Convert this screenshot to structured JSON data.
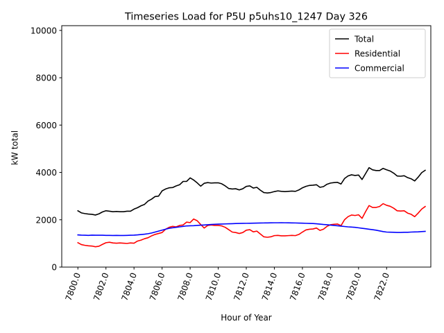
{
  "chart_data": {
    "type": "line",
    "title": "Timeseries Load for P5U p5uhs10_1247  Day 326",
    "xlabel": "Hour of Year",
    "ylabel": "kW total",
    "xlim": [
      7798.85,
      7825.15
    ],
    "ylim": [
      0,
      10200
    ],
    "xticks": [
      7800,
      7802,
      7804,
      7806,
      7808,
      7810,
      7812,
      7814,
      7816,
      7818,
      7820,
      7822
    ],
    "xtick_labels": [
      "7800.0",
      "7802.0",
      "7804.0",
      "7806.0",
      "7808.0",
      "7810.0",
      "7812.0",
      "7814.0",
      "7816.0",
      "7818.0",
      "7820.0",
      "7822.0"
    ],
    "yticks": [
      0,
      2000,
      4000,
      6000,
      8000,
      10000
    ],
    "ytick_labels": [
      "0",
      "2000",
      "4000",
      "6000",
      "8000",
      "10000"
    ],
    "legend_position": "top-right",
    "x_start": 7800,
    "x_step": 0.25,
    "series": [
      {
        "name": "Total",
        "color": "#000000",
        "values": [
          2380,
          2290,
          2260,
          2240,
          2230,
          2200,
          2250,
          2330,
          2380,
          2360,
          2340,
          2350,
          2340,
          2340,
          2360,
          2360,
          2450,
          2510,
          2590,
          2650,
          2790,
          2870,
          2980,
          3000,
          3220,
          3300,
          3350,
          3360,
          3430,
          3480,
          3620,
          3620,
          3770,
          3680,
          3560,
          3420,
          3540,
          3570,
          3550,
          3560,
          3560,
          3520,
          3430,
          3320,
          3300,
          3310,
          3260,
          3310,
          3410,
          3430,
          3340,
          3370,
          3250,
          3150,
          3130,
          3150,
          3190,
          3220,
          3200,
          3190,
          3200,
          3210,
          3200,
          3260,
          3350,
          3410,
          3450,
          3460,
          3480,
          3370,
          3400,
          3500,
          3550,
          3570,
          3580,
          3510,
          3740,
          3850,
          3900,
          3870,
          3890,
          3700,
          3950,
          4200,
          4110,
          4080,
          4080,
          4170,
          4110,
          4060,
          3970,
          3850,
          3840,
          3860,
          3780,
          3730,
          3640,
          3800,
          3990,
          4090
        ]
      },
      {
        "name": "Residential",
        "color": "#ff0000",
        "values": [
          1030,
          950,
          920,
          900,
          890,
          860,
          880,
          960,
          1030,
          1050,
          1020,
          1010,
          1020,
          1010,
          1000,
          1020,
          1010,
          1100,
          1140,
          1200,
          1240,
          1320,
          1380,
          1420,
          1460,
          1600,
          1680,
          1720,
          1700,
          1760,
          1780,
          1900,
          1880,
          2030,
          1960,
          1800,
          1650,
          1760,
          1780,
          1760,
          1760,
          1740,
          1680,
          1580,
          1480,
          1460,
          1420,
          1460,
          1560,
          1580,
          1490,
          1520,
          1400,
          1280,
          1260,
          1280,
          1330,
          1340,
          1320,
          1320,
          1330,
          1340,
          1330,
          1380,
          1480,
          1570,
          1600,
          1610,
          1650,
          1550,
          1600,
          1720,
          1790,
          1810,
          1820,
          1750,
          2000,
          2130,
          2200,
          2180,
          2210,
          2060,
          2340,
          2600,
          2520,
          2520,
          2560,
          2680,
          2610,
          2570,
          2490,
          2380,
          2370,
          2380,
          2280,
          2230,
          2130,
          2280,
          2450,
          2560
        ]
      },
      {
        "name": "Commercial",
        "color": "#0000ff",
        "values": [
          1360,
          1350,
          1345,
          1340,
          1350,
          1345,
          1345,
          1345,
          1340,
          1340,
          1335,
          1340,
          1335,
          1335,
          1340,
          1345,
          1350,
          1360,
          1375,
          1390,
          1410,
          1440,
          1480,
          1520,
          1560,
          1600,
          1640,
          1660,
          1680,
          1700,
          1720,
          1740,
          1745,
          1750,
          1760,
          1770,
          1780,
          1790,
          1800,
          1810,
          1815,
          1820,
          1825,
          1830,
          1835,
          1840,
          1845,
          1848,
          1850,
          1852,
          1855,
          1860,
          1862,
          1865,
          1868,
          1870,
          1872,
          1872,
          1874,
          1872,
          1870,
          1868,
          1865,
          1860,
          1855,
          1850,
          1845,
          1840,
          1830,
          1815,
          1800,
          1790,
          1775,
          1760,
          1745,
          1730,
          1715,
          1700,
          1690,
          1680,
          1660,
          1640,
          1620,
          1600,
          1580,
          1560,
          1530,
          1500,
          1480,
          1475,
          1470,
          1465,
          1465,
          1470,
          1470,
          1480,
          1485,
          1490,
          1500,
          1510
        ]
      }
    ]
  }
}
